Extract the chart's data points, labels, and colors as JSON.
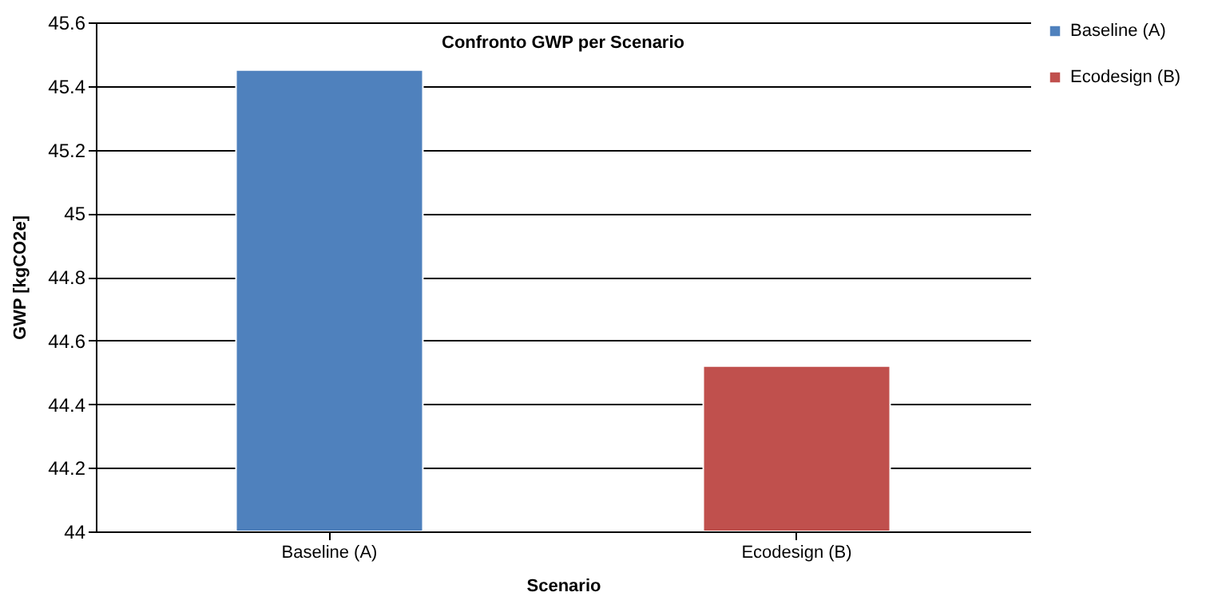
{
  "chart_data": {
    "type": "bar",
    "title": "Confronto GWP per Scenario",
    "xlabel": "Scenario",
    "ylabel": "GWP [kgCO2e]",
    "categories": [
      "Baseline (A)",
      "Ecodesign (B)"
    ],
    "series": [
      {
        "name": "Baseline (A)",
        "color": "#4f81bd",
        "values": [
          45.45,
          null
        ]
      },
      {
        "name": "Ecodesign (B)",
        "color": "#c0504d",
        "values": [
          null,
          44.52
        ]
      }
    ],
    "ylim": [
      44,
      45.6
    ],
    "yticks": [
      44,
      44.2,
      44.4,
      44.6,
      44.8,
      45,
      45.2,
      45.4,
      45.6
    ],
    "grid": "y",
    "legend": "right"
  }
}
